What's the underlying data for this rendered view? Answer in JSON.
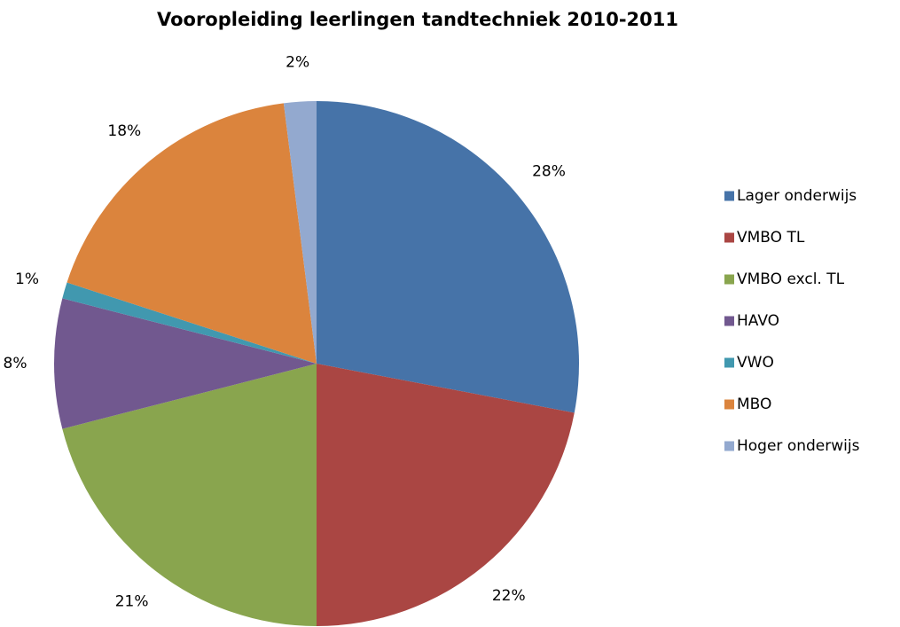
{
  "chart_data": {
    "type": "pie",
    "title": "Vooropleiding leerlingen tandtechniek 2010-2011",
    "categories": [
      "Lager onderwijs",
      "VMBO TL",
      "VMBO excl. TL",
      "HAVO",
      "VWO",
      "MBO",
      "Hoger onderwijs"
    ],
    "values": [
      28,
      22,
      21,
      8,
      1,
      18,
      2
    ],
    "value_labels": [
      "28%",
      "22%",
      "21%",
      "8%",
      "1%",
      "18%",
      "2%"
    ],
    "colors": [
      "#4673a8",
      "#aa4643",
      "#89a54e",
      "#71588f",
      "#4198af",
      "#db843d",
      "#93a9cf"
    ],
    "legend": "right"
  }
}
